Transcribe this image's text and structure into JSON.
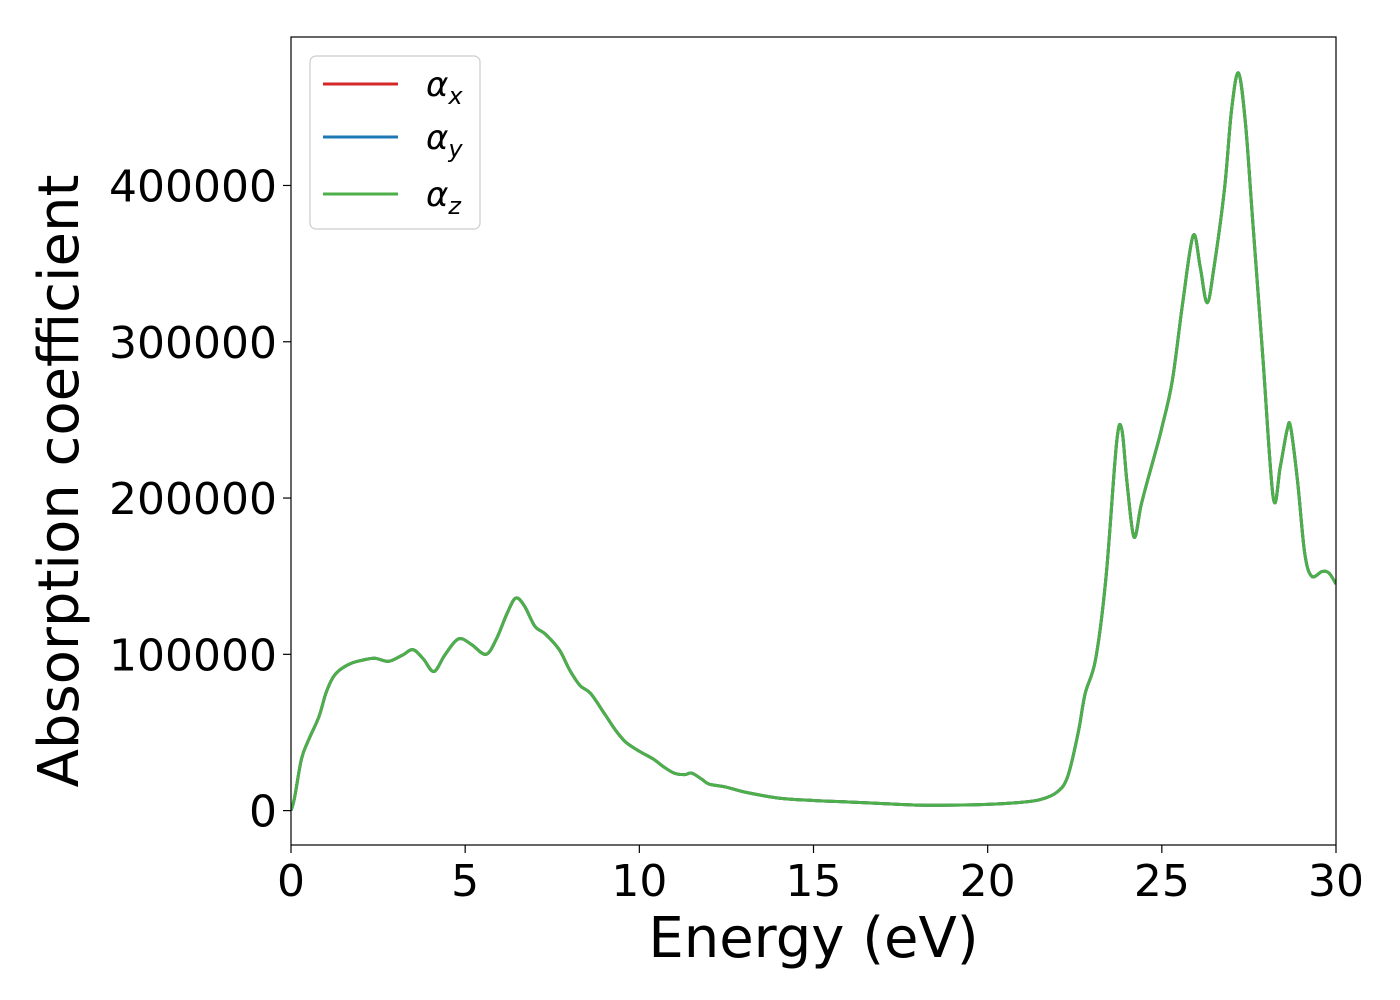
{
  "chart_data": {
    "type": "line",
    "title": "",
    "xlabel": "Energy (eV)",
    "ylabel": "Absorption coefficient",
    "xlim": [
      0,
      30
    ],
    "ylim": [
      -22000,
      495000
    ],
    "xticks": [
      0,
      5,
      10,
      15,
      20,
      25,
      30
    ],
    "yticks": [
      0,
      100000,
      200000,
      300000,
      400000
    ],
    "grid": false,
    "legend_position": "upper-left",
    "series": [
      {
        "name": "αx",
        "symbol": "α",
        "sub": "x",
        "color": "#d62728",
        "x": [
          0,
          0.1,
          0.3,
          0.5,
          0.8,
          1.0,
          1.2,
          1.4,
          1.7,
          2.0,
          2.4,
          2.8,
          3.2,
          3.5,
          3.8,
          4.1,
          4.4,
          4.7,
          4.9,
          5.2,
          5.6,
          5.9,
          6.2,
          6.45,
          6.7,
          7.0,
          7.3,
          7.7,
          8.0,
          8.3,
          8.6,
          9.0,
          9.3,
          9.6,
          10.0,
          10.4,
          10.7,
          11.0,
          11.3,
          11.5,
          11.8,
          12.0,
          12.5,
          13.0,
          14.0,
          15.0,
          16.0,
          17.0,
          18.0,
          19.0,
          20.0,
          20.8,
          21.5,
          22.0,
          22.3,
          22.6,
          22.8,
          23.1,
          23.4,
          23.7,
          23.85,
          24.0,
          24.2,
          24.4,
          24.6,
          24.8,
          25.0,
          25.3,
          25.6,
          25.9,
          26.1,
          26.3,
          26.5,
          26.8,
          27.0,
          27.2,
          27.4,
          27.6,
          27.9,
          28.2,
          28.4,
          28.6,
          28.7,
          28.9,
          29.1,
          29.3,
          29.6,
          29.8,
          30.0
        ],
        "values": [
          0,
          8000,
          33000,
          45000,
          60000,
          75000,
          85000,
          90000,
          94000,
          96000,
          97500,
          95500,
          99500,
          103000,
          97000,
          89000,
          99000,
          108000,
          110000,
          106000,
          100000,
          110000,
          126000,
          136000,
          131000,
          118000,
          113000,
          103000,
          90000,
          80000,
          75000,
          62000,
          52000,
          44000,
          38000,
          33000,
          28000,
          24000,
          23000,
          24000,
          20000,
          17000,
          15000,
          12000,
          8000,
          6500,
          5500,
          4500,
          3500,
          3500,
          4000,
          5000,
          7000,
          12000,
          22000,
          50000,
          75000,
          97000,
          150000,
          235000,
          244000,
          210000,
          175000,
          195000,
          212000,
          228000,
          245000,
          275000,
          325000,
          368000,
          348000,
          325000,
          348000,
          398000,
          448000,
          472000,
          440000,
          380000,
          290000,
          200000,
          220000,
          244000,
          245000,
          210000,
          165000,
          150000,
          153000,
          152000,
          145000
        ]
      },
      {
        "name": "αy",
        "symbol": "α",
        "sub": "y",
        "color": "#1f77b4",
        "same_as": "αx"
      },
      {
        "name": "αz",
        "symbol": "α",
        "sub": "z",
        "color": "#4daf4a",
        "same_as": "αx"
      }
    ]
  }
}
